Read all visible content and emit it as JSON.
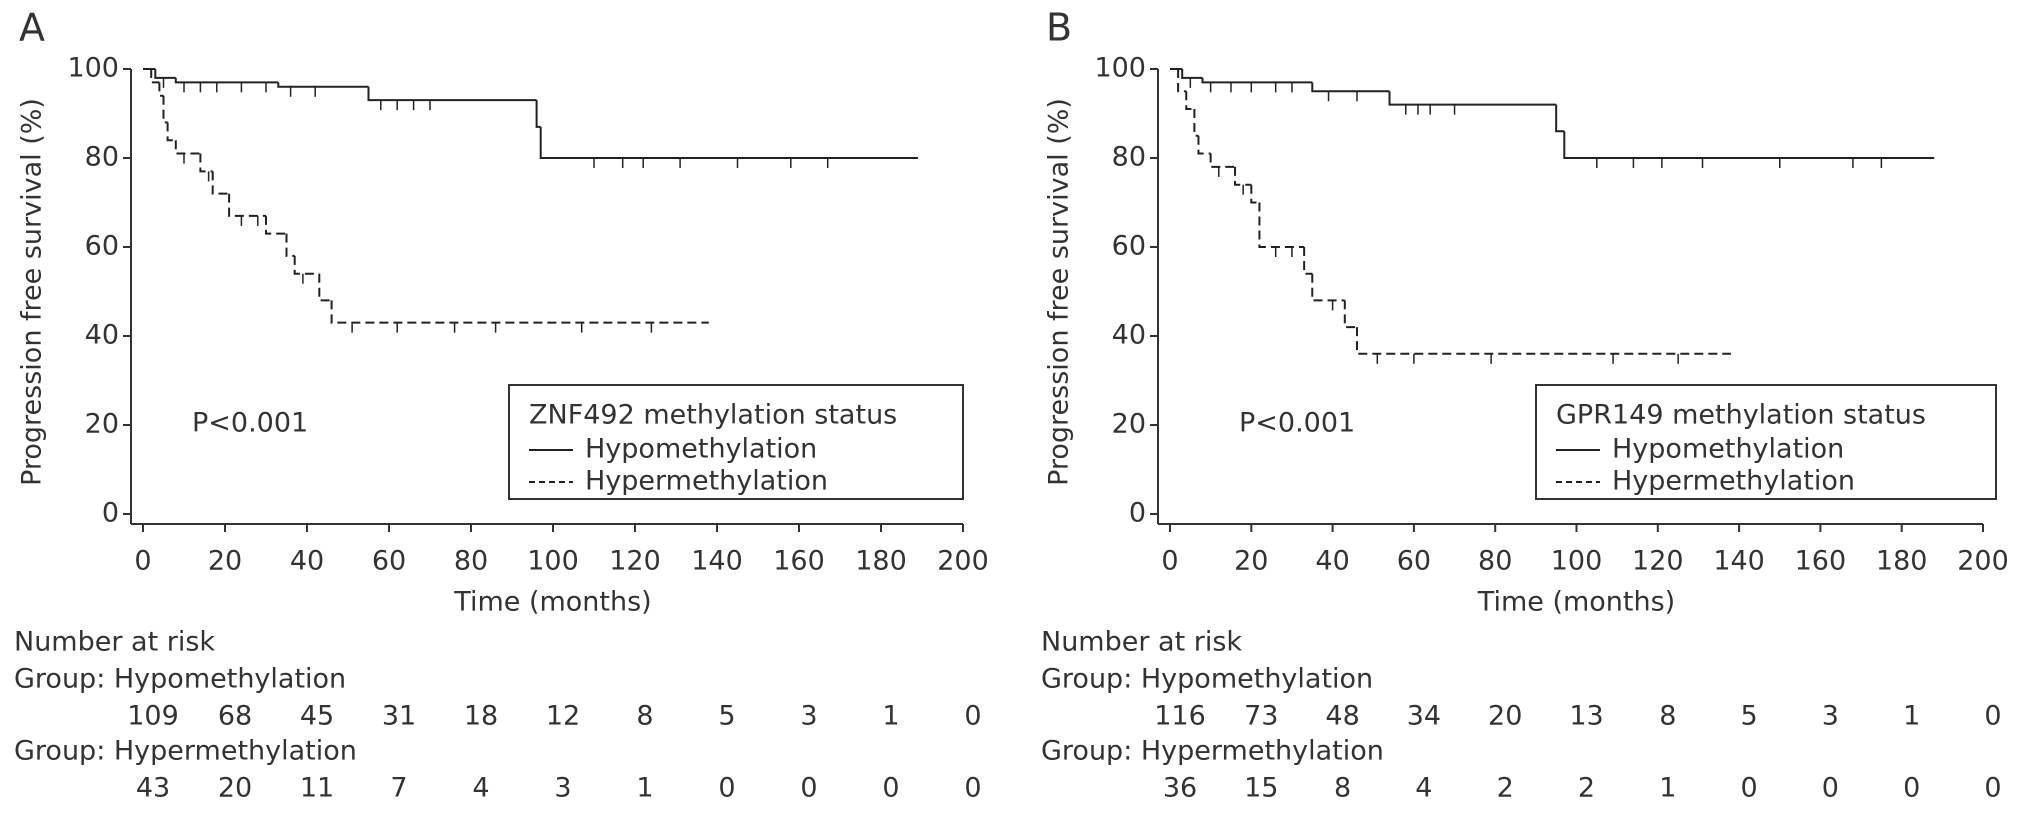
{
  "chart_data": [
    {
      "type": "step",
      "panel": "A",
      "ylabel": "Progression free survival (%)",
      "xlabel": "Time (months)",
      "xlim": [
        0,
        200
      ],
      "ylim": [
        0,
        100
      ],
      "xticks": [
        0,
        20,
        40,
        60,
        80,
        100,
        120,
        140,
        160,
        180,
        200
      ],
      "yticks": [
        0,
        20,
        40,
        60,
        80,
        100
      ],
      "annotation": "P<0.001",
      "legend_title": "ZNF492 methylation status",
      "legend": "lower right",
      "series": [
        {
          "name": "Hypomethylation",
          "color": "#222222",
          "dashed": false,
          "x": [
            0,
            3,
            8,
            33,
            55,
            96,
            97,
            189
          ],
          "values": [
            100,
            98,
            97,
            96,
            93,
            87,
            80,
            80
          ],
          "censor_x": [
            5,
            10,
            14,
            18,
            24,
            30,
            36,
            42,
            58,
            62,
            66,
            70,
            110,
            117,
            122,
            131,
            145,
            158,
            167
          ],
          "censor_values": [
            98,
            97,
            97,
            97,
            97,
            97,
            96,
            96,
            93,
            93,
            93,
            93,
            80,
            80,
            80,
            80,
            80,
            80,
            80
          ]
        },
        {
          "name": "Hypermethylation",
          "color": "#222222",
          "dashed": true,
          "x": [
            0,
            2,
            4,
            5,
            6,
            8,
            14,
            17,
            21,
            30,
            35,
            37,
            43,
            46,
            138
          ],
          "values": [
            100,
            97,
            94,
            88,
            84,
            81,
            77,
            72,
            67,
            63,
            58,
            54,
            48,
            43,
            43
          ],
          "censor_x": [
            10,
            16,
            24,
            28,
            39,
            51,
            62,
            76,
            86,
            107,
            124
          ],
          "censor_values": [
            81,
            77,
            67,
            67,
            54,
            43,
            43,
            43,
            43,
            43,
            43
          ]
        }
      ],
      "risk_table": {
        "title": "Number at risk",
        "groups": [
          {
            "label": "Group: Hypomethylation",
            "counts": [
              109,
              68,
              45,
              31,
              18,
              12,
              8,
              5,
              3,
              1,
              0
            ]
          },
          {
            "label": "Group: Hypermethylation",
            "counts": [
              43,
              20,
              11,
              7,
              4,
              3,
              1,
              0,
              0,
              0,
              0
            ]
          }
        ]
      }
    },
    {
      "type": "step",
      "panel": "B",
      "ylabel": "Progression free survival (%)",
      "xlabel": "Time (months)",
      "xlim": [
        0,
        200
      ],
      "ylim": [
        0,
        100
      ],
      "xticks": [
        0,
        20,
        40,
        60,
        80,
        100,
        120,
        140,
        160,
        180,
        200
      ],
      "yticks": [
        0,
        20,
        40,
        60,
        80,
        100
      ],
      "annotation": "P<0.001",
      "legend_title": "GPR149 methylation status",
      "legend": "lower right",
      "series": [
        {
          "name": "Hypomethylation",
          "color": "#222222",
          "dashed": false,
          "x": [
            0,
            3,
            8,
            35,
            54,
            95,
            97,
            188
          ],
          "values": [
            100,
            98,
            97,
            95,
            92,
            86,
            80,
            80
          ],
          "censor_x": [
            5,
            10,
            15,
            20,
            26,
            30,
            39,
            46,
            58,
            61,
            64,
            70,
            105,
            114,
            121,
            131,
            150,
            168,
            175
          ],
          "censor_values": [
            98,
            97,
            97,
            97,
            97,
            97,
            95,
            95,
            92,
            92,
            92,
            92,
            80,
            80,
            80,
            80,
            80,
            80,
            80
          ]
        },
        {
          "name": "Hypermethylation",
          "color": "#222222",
          "dashed": true,
          "x": [
            0,
            2,
            4,
            6,
            7,
            10,
            16,
            20,
            22,
            33,
            35,
            43,
            46,
            138
          ],
          "values": [
            100,
            95,
            91,
            85,
            81,
            78,
            74,
            70,
            60,
            54,
            48,
            42,
            36,
            36
          ],
          "censor_x": [
            12,
            18,
            26,
            30,
            40,
            51,
            60,
            79,
            109,
            125
          ],
          "censor_values": [
            78,
            74,
            60,
            60,
            48,
            36,
            36,
            36,
            36,
            36
          ]
        }
      ],
      "risk_table": {
        "title": "Number at risk",
        "groups": [
          {
            "label": "Group: Hypomethylation",
            "counts": [
              116,
              73,
              48,
              34,
              20,
              13,
              8,
              5,
              3,
              1,
              0
            ]
          },
          {
            "label": "Group: Hypermethylation",
            "counts": [
              36,
              15,
              8,
              4,
              2,
              2,
              1,
              0,
              0,
              0,
              0
            ]
          }
        ]
      }
    }
  ]
}
